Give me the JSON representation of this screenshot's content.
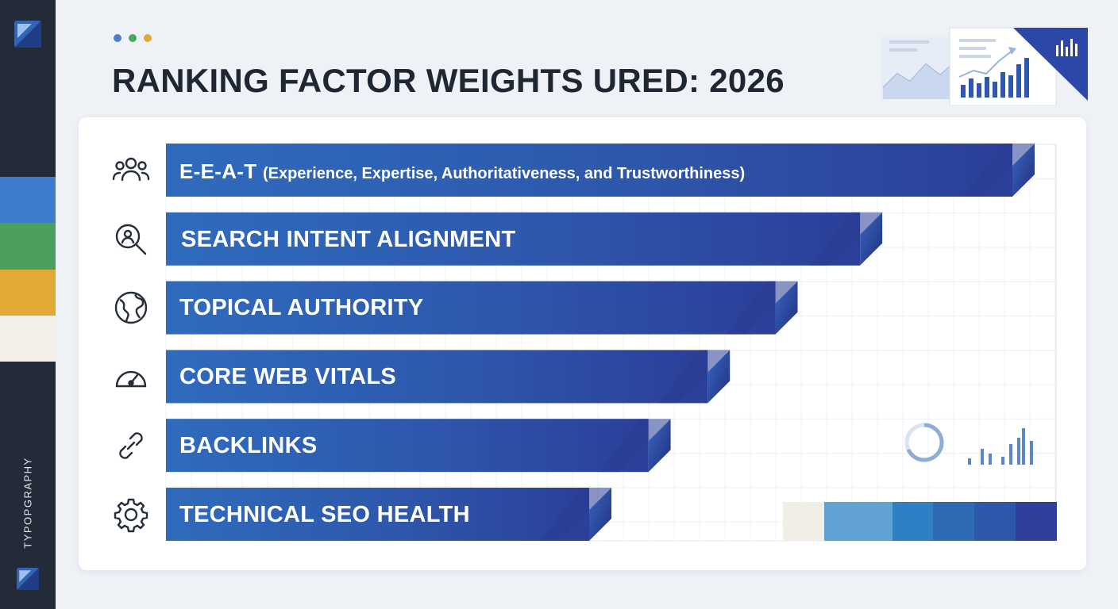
{
  "page": {
    "title": "RANKING FACTOR WEIGHTS URED: 2026",
    "rail_label": "TYPOPGRAPHY",
    "dot_colors": [
      "#4a7fc8",
      "#4aa85a",
      "#e0a93a"
    ],
    "rail_swatches": [
      "#3d7ccb",
      "#4aa05c",
      "#e2a937",
      "#f3efe7"
    ],
    "strip_colors": [
      "#f1eee7",
      "#5fa2d3",
      "#2f7fc4",
      "#2f6bb4",
      "#2e58a9",
      "#2f3f9a"
    ],
    "accent": "#2b45a0"
  },
  "chart_data": {
    "type": "bar",
    "orientation": "horizontal",
    "title": "RANKING FACTOR WEIGHTS URED: 2026",
    "categories": [
      "E-E-A-T",
      "SEARCH INTENT ALIGNMENT",
      "TOPICAL AUTHORITY",
      "CORE WEB VITALS",
      "BACKLINKS",
      "TECHNICAL SEO HEALTH"
    ],
    "category_details": [
      "(Experience, Expertise, Authoritativeness, and Trustworthiness)",
      "",
      "",
      "",
      "",
      ""
    ],
    "icons": [
      "people-icon",
      "search-person-icon",
      "globe-icon",
      "gauge-icon",
      "link-icon",
      "gear-icon"
    ],
    "values": [
      100,
      82,
      72,
      64,
      57,
      50
    ],
    "xlim": [
      0,
      100
    ],
    "grid": true,
    "legend": "none"
  }
}
